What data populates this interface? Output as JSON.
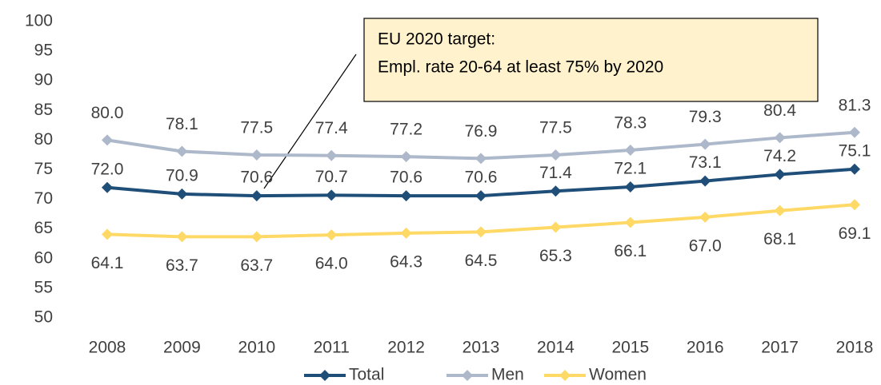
{
  "chart_data": {
    "type": "line",
    "categories": [
      "2008",
      "2009",
      "2010",
      "2011",
      "2012",
      "2013",
      "2014",
      "2015",
      "2016",
      "2017",
      "2018"
    ],
    "series": [
      {
        "name": "Total",
        "color": "#1f4e79",
        "values": [
          72.0,
          70.9,
          70.6,
          70.7,
          70.6,
          70.6,
          71.4,
          72.1,
          73.1,
          74.2,
          75.1
        ],
        "value_labels": [
          "72.0",
          "70.9",
          "70.6",
          "70.7",
          "70.6",
          "70.6",
          "71.4",
          "72.1",
          "73.1",
          "74.2",
          "75.1"
        ]
      },
      {
        "name": "Men",
        "color": "#adb9ca",
        "values": [
          80.0,
          78.1,
          77.5,
          77.4,
          77.2,
          76.9,
          77.5,
          78.3,
          79.3,
          80.4,
          81.3
        ],
        "value_labels": [
          "80.0",
          "78.1",
          "77.5",
          "77.4",
          "77.2",
          "76.9",
          "77.5",
          "78.3",
          "79.3",
          "80.4",
          "81.3"
        ]
      },
      {
        "name": "Women",
        "color": "#ffd966",
        "values": [
          64.1,
          63.7,
          63.7,
          64.0,
          64.3,
          64.5,
          65.3,
          66.1,
          67.0,
          68.1,
          69.1
        ],
        "value_labels": [
          "64.1",
          "63.7",
          "63.7",
          "64.0",
          "64.3",
          "64.5",
          "65.3",
          "66.1",
          "67.0",
          "68.1",
          "69.1"
        ]
      }
    ],
    "ylim": [
      50,
      100
    ],
    "yticks": [
      50,
      55,
      60,
      65,
      70,
      75,
      80,
      85,
      90,
      95,
      100
    ],
    "grid": false,
    "legend": "bottom",
    "annotations": [
      "EU 2020 target:",
      "Empl. rate 20-64 at least 75% by 2020"
    ]
  }
}
